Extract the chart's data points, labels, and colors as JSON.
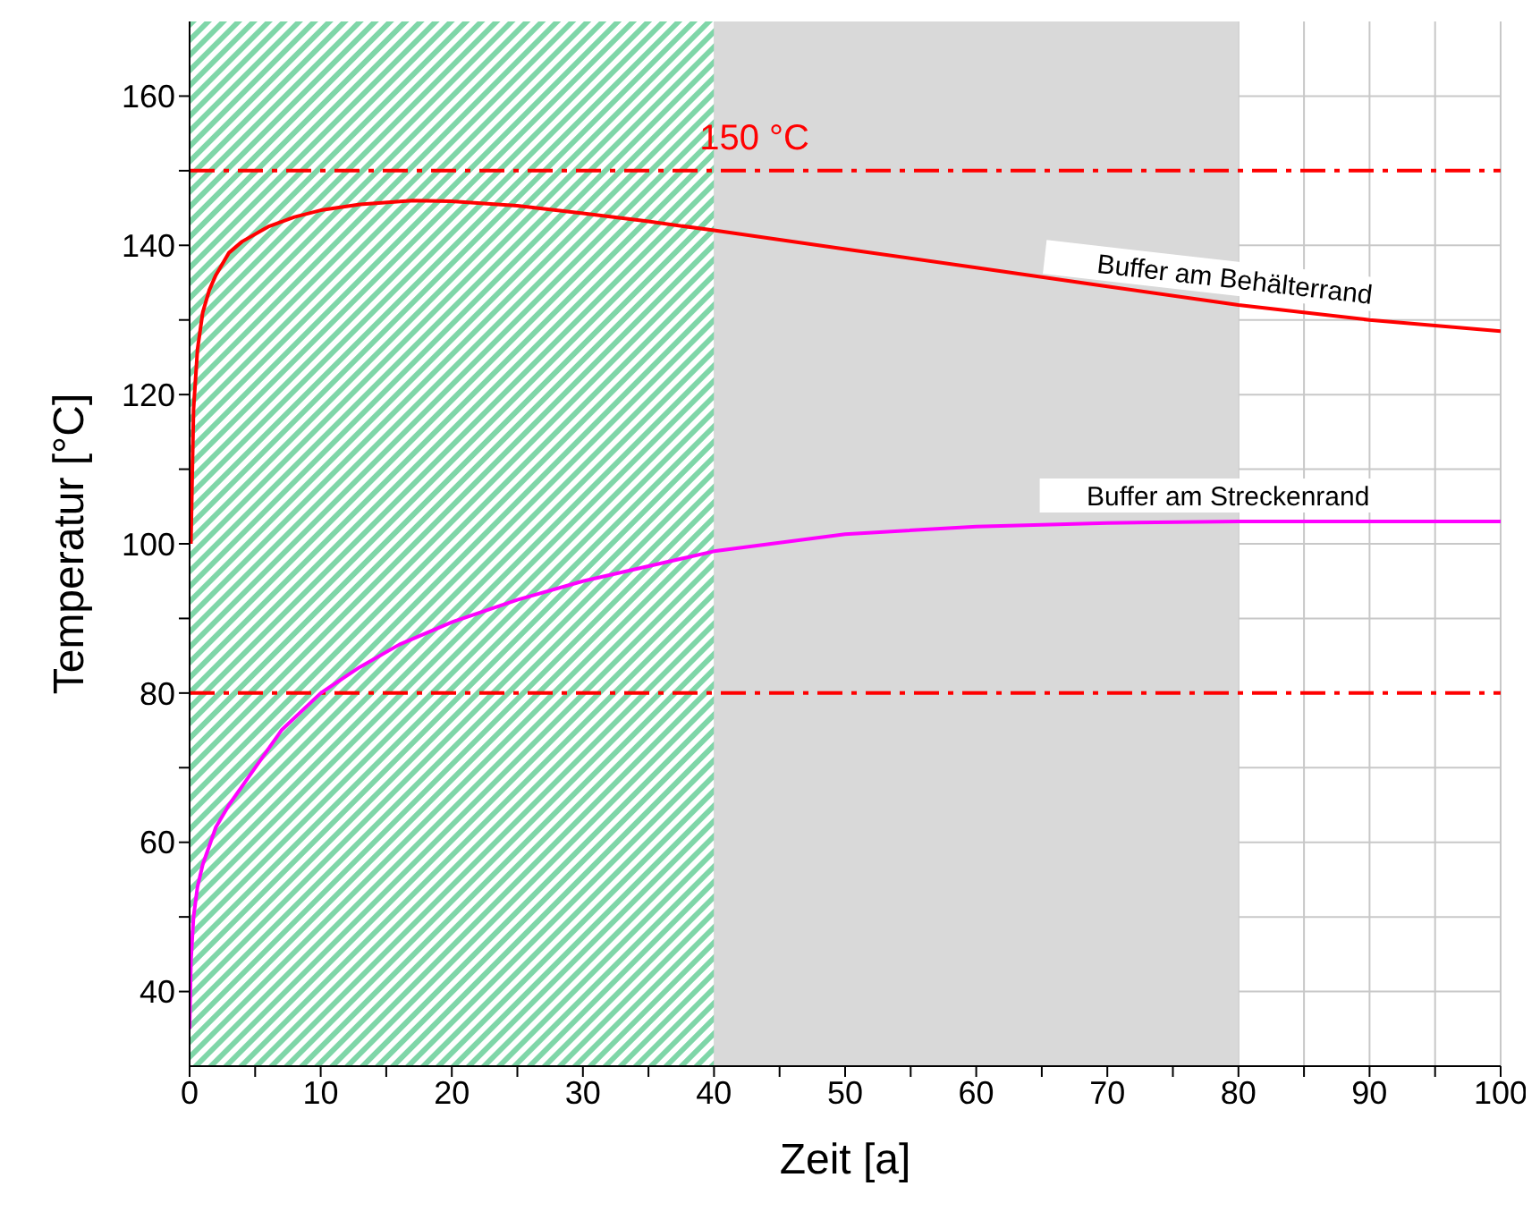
{
  "chart_data": {
    "type": "line",
    "xlabel": "Zeit [a]",
    "ylabel": "Temperatur [°C]",
    "xlim": [
      0,
      100
    ],
    "ylim": [
      30,
      170
    ],
    "xticks": [
      0,
      {
        "value": 5,
        "label": null
      },
      10,
      {
        "value": 15,
        "label": null
      },
      20,
      {
        "value": 25,
        "label": null
      },
      30,
      {
        "value": 35,
        "label": null
      },
      40,
      {
        "value": 45,
        "label": null
      },
      50,
      {
        "value": 55,
        "label": null
      },
      60,
      {
        "value": 65,
        "label": null
      },
      70,
      {
        "value": 75,
        "label": null
      },
      80,
      {
        "value": 85,
        "label": null
      },
      90,
      {
        "value": 95,
        "label": null
      },
      100
    ],
    "yticks": [
      40,
      {
        "value": 50,
        "label": null
      },
      60,
      {
        "value": 70,
        "label": null
      },
      80,
      {
        "value": 90,
        "label": null
      },
      100,
      {
        "value": 110,
        "label": null
      },
      120,
      {
        "value": 130,
        "label": null
      },
      140,
      {
        "value": 150,
        "label": null
      },
      160
    ],
    "grid": true,
    "marker": "none",
    "line_style": "solid",
    "legend": false,
    "series": [
      {
        "name": "Buffer am Behälterrand",
        "color": "#ff0000",
        "x": [
          0.1,
          0.3,
          0.6,
          1,
          1.5,
          2,
          3,
          4,
          6,
          8,
          10,
          13,
          17,
          20,
          25,
          30,
          35,
          40,
          50,
          60,
          70,
          80,
          90,
          100
        ],
        "values": [
          100,
          118,
          126,
          131,
          134,
          136,
          139,
          140.5,
          142.5,
          143.8,
          144.7,
          145.5,
          146,
          145.9,
          145.3,
          144.3,
          143.2,
          142,
          139.5,
          137,
          134.5,
          132,
          130,
          128.5
        ]
      },
      {
        "name": "Buffer am Streckenrand",
        "color": "#ff00ff",
        "x": [
          0,
          0.1,
          0.3,
          0.6,
          1,
          2,
          3,
          5,
          7,
          10,
          13,
          16,
          20,
          25,
          30,
          35,
          40,
          50,
          60,
          70,
          80,
          90,
          100
        ],
        "values": [
          35,
          44,
          50,
          54,
          57,
          62,
          65,
          70,
          75,
          80,
          83.5,
          86.5,
          89.5,
          92.5,
          95,
          97,
          99,
          101.3,
          102.3,
          102.8,
          103,
          103,
          103
        ]
      }
    ],
    "ref_lines": [
      {
        "axis": "y",
        "value": 150,
        "label": "150 °C",
        "color": "#ff0000",
        "line_style": "dashed"
      },
      {
        "axis": "y",
        "value": 80,
        "color": "#ff0000",
        "line_style": "dashed"
      }
    ],
    "bands": [
      {
        "axis": "x",
        "from": 0,
        "to": 40,
        "color": "#7fd6a8"
      },
      {
        "axis": "x",
        "from": 40,
        "to": 80,
        "color": "#d9d9d9"
      }
    ]
  }
}
